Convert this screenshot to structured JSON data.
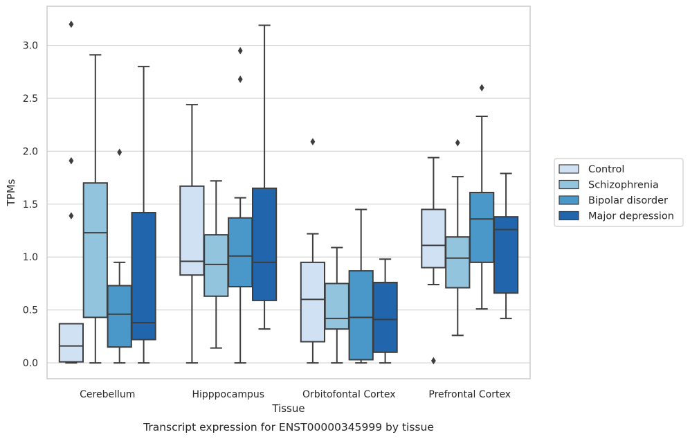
{
  "chart_data": {
    "type": "boxplot",
    "title": "",
    "caption": "Transcript expression for ENST00000345999 by tissue",
    "xlabel": "Tissue",
    "ylabel": "TPMs",
    "ylim": [
      -0.15,
      3.37
    ],
    "yticks": [
      0.0,
      0.5,
      1.0,
      1.5,
      2.0,
      2.5,
      3.0
    ],
    "ytick_labels": [
      "0.0",
      "0.5",
      "1.0",
      "1.5",
      "2.0",
      "2.5",
      "3.0"
    ],
    "grid": "horizontal",
    "legend_position": "right",
    "categories": [
      "Cerebellum",
      "Hipppocampus",
      "Orbitofontal Cortex",
      "Prefrontal Cortex"
    ],
    "series": [
      {
        "name": "Control",
        "color": "#cfe1f2",
        "boxes": [
          {
            "whislo": 0.0,
            "q1": 0.01,
            "med": 0.16,
            "q3": 0.37,
            "whishi": 0.37,
            "fliers": [
              3.2,
              1.91,
              1.39
            ]
          },
          {
            "whislo": 0.0,
            "q1": 0.83,
            "med": 0.96,
            "q3": 1.67,
            "whishi": 2.44,
            "fliers": []
          },
          {
            "whislo": 0.0,
            "q1": 0.2,
            "med": 0.6,
            "q3": 0.95,
            "whishi": 1.22,
            "fliers": [
              2.09
            ]
          },
          {
            "whislo": 0.74,
            "q1": 0.9,
            "med": 1.11,
            "q3": 1.45,
            "whishi": 1.94,
            "fliers": [
              0.02
            ]
          }
        ]
      },
      {
        "name": "Schizophrenia",
        "color": "#93c4de",
        "boxes": [
          {
            "whislo": 0.0,
            "q1": 0.43,
            "med": 1.23,
            "q3": 1.7,
            "whishi": 2.91,
            "fliers": []
          },
          {
            "whislo": 0.14,
            "q1": 0.63,
            "med": 0.93,
            "q3": 1.21,
            "whishi": 1.72,
            "fliers": []
          },
          {
            "whislo": 0.0,
            "q1": 0.32,
            "med": 0.42,
            "q3": 0.75,
            "whishi": 1.09,
            "fliers": []
          },
          {
            "whislo": 0.26,
            "q1": 0.71,
            "med": 0.99,
            "q3": 1.19,
            "whishi": 1.76,
            "fliers": [
              2.08
            ]
          }
        ]
      },
      {
        "name": "Bipolar disorder",
        "color": "#4a98c9",
        "boxes": [
          {
            "whislo": 0.0,
            "q1": 0.15,
            "med": 0.46,
            "q3": 0.73,
            "whishi": 0.95,
            "fliers": [
              1.99
            ]
          },
          {
            "whislo": 0.0,
            "q1": 0.72,
            "med": 1.01,
            "q3": 1.37,
            "whishi": 1.56,
            "fliers": [
              2.95,
              2.68
            ]
          },
          {
            "whislo": 0.0,
            "q1": 0.03,
            "med": 0.43,
            "q3": 0.87,
            "whishi": 1.45,
            "fliers": []
          },
          {
            "whislo": 0.51,
            "q1": 0.95,
            "med": 1.36,
            "q3": 1.61,
            "whishi": 2.33,
            "fliers": [
              2.6
            ]
          }
        ]
      },
      {
        "name": "Major depression",
        "color": "#2166ac",
        "boxes": [
          {
            "whislo": 0.0,
            "q1": 0.22,
            "med": 0.38,
            "q3": 1.42,
            "whishi": 2.8,
            "fliers": []
          },
          {
            "whislo": 0.32,
            "q1": 0.59,
            "med": 0.95,
            "q3": 1.65,
            "whishi": 3.19,
            "fliers": []
          },
          {
            "whislo": 0.0,
            "q1": 0.1,
            "med": 0.41,
            "q3": 0.76,
            "whishi": 0.98,
            "fliers": []
          },
          {
            "whislo": 0.42,
            "q1": 0.66,
            "med": 1.26,
            "q3": 1.38,
            "whishi": 1.79,
            "fliers": []
          }
        ]
      }
    ]
  }
}
